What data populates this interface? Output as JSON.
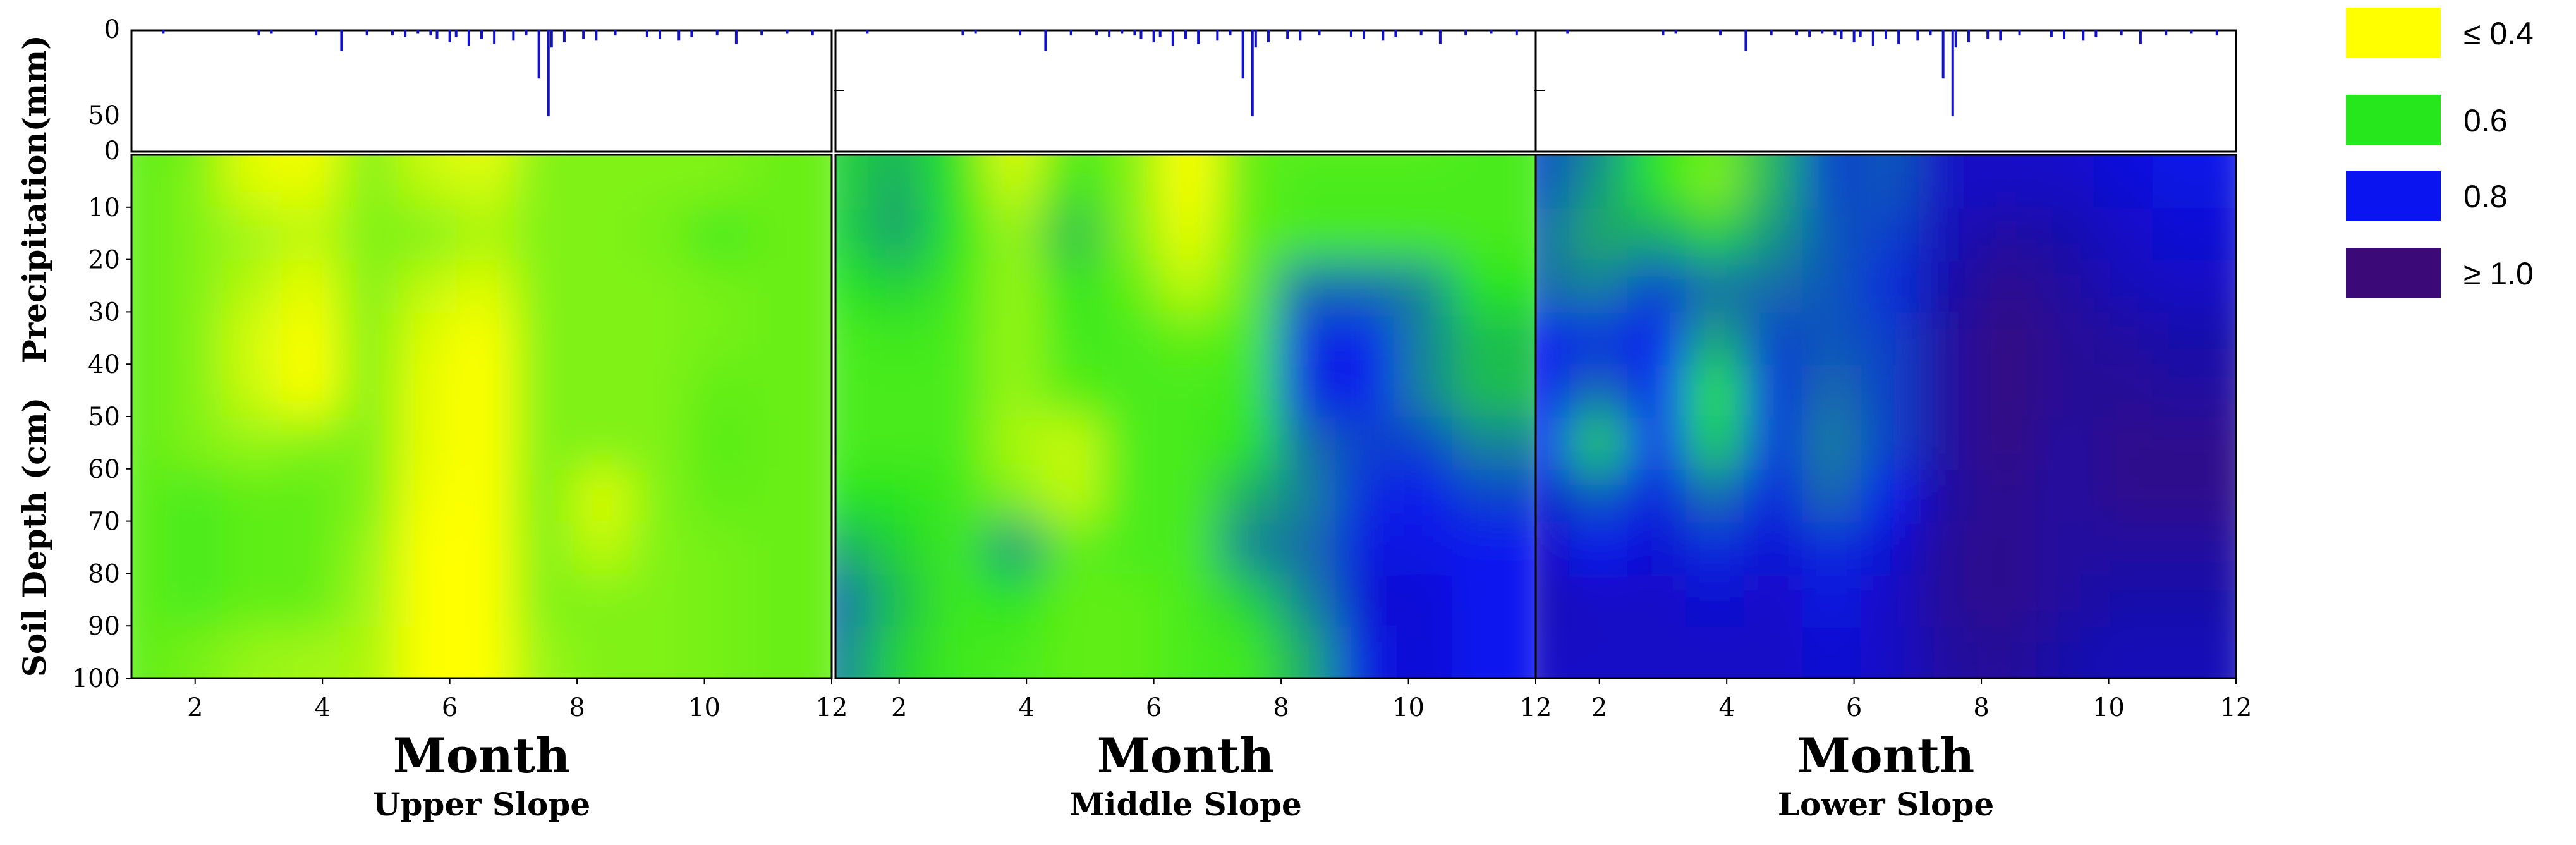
{
  "chart_data": {
    "type": "heatmap",
    "x_ticks": [
      2,
      4,
      6,
      8,
      10,
      12
    ],
    "xlim": [
      1,
      12
    ],
    "depth_ticks": [
      0,
      10,
      20,
      30,
      40,
      50,
      60,
      70,
      80,
      90,
      100
    ],
    "depth_ylim": [
      0,
      100
    ],
    "precip_ticks": [
      0,
      50
    ],
    "precip_ylim": [
      0,
      50
    ],
    "ylabel_soil": "Soil Depth (cm)",
    "ylabel_precip": "Precipitation(mm)",
    "xlabel": "Month",
    "legend": [
      {
        "label": "≤ 0.4",
        "color": "#ffff00"
      },
      {
        "label": "0.6",
        "color": "#26e61c"
      },
      {
        "label": "0.8",
        "color": "#0a14f0"
      },
      {
        "label": "≥ 1.0",
        "color": "#3c0a78"
      }
    ],
    "precipitation": [
      [
        1.5,
        2
      ],
      [
        3.0,
        3
      ],
      [
        3.2,
        2
      ],
      [
        3.9,
        3
      ],
      [
        4.3,
        12
      ],
      [
        4.7,
        3
      ],
      [
        5.1,
        3
      ],
      [
        5.3,
        4
      ],
      [
        5.5,
        2
      ],
      [
        5.7,
        3
      ],
      [
        5.8,
        5
      ],
      [
        6.0,
        7
      ],
      [
        6.1,
        4
      ],
      [
        6.3,
        9
      ],
      [
        6.5,
        5
      ],
      [
        6.7,
        8
      ],
      [
        7.0,
        6
      ],
      [
        7.2,
        3
      ],
      [
        7.4,
        28
      ],
      [
        7.55,
        50
      ],
      [
        7.6,
        10
      ],
      [
        7.8,
        7
      ],
      [
        8.1,
        5
      ],
      [
        8.3,
        6
      ],
      [
        8.6,
        3
      ],
      [
        9.1,
        4
      ],
      [
        9.3,
        5
      ],
      [
        9.6,
        6
      ],
      [
        9.8,
        4
      ],
      [
        10.2,
        3
      ],
      [
        10.5,
        8
      ],
      [
        10.9,
        3
      ],
      [
        11.3,
        2
      ],
      [
        11.7,
        3
      ]
    ],
    "panels": [
      {
        "title": "Upper Slope",
        "grid": [
          [
            0.55,
            0.54,
            0.42,
            0.38,
            0.52,
            0.44,
            0.41,
            0.52,
            0.52,
            0.52,
            0.52,
            0.54
          ],
          [
            0.55,
            0.52,
            0.43,
            0.42,
            0.52,
            0.46,
            0.44,
            0.52,
            0.52,
            0.52,
            0.52,
            0.54
          ],
          [
            0.55,
            0.52,
            0.49,
            0.46,
            0.52,
            0.52,
            0.48,
            0.52,
            0.52,
            0.53,
            0.58,
            0.54
          ],
          [
            0.55,
            0.52,
            0.47,
            0.42,
            0.52,
            0.46,
            0.43,
            0.52,
            0.52,
            0.52,
            0.53,
            0.54
          ],
          [
            0.55,
            0.52,
            0.44,
            0.39,
            0.52,
            0.43,
            0.39,
            0.52,
            0.52,
            0.52,
            0.53,
            0.54
          ],
          [
            0.55,
            0.52,
            0.45,
            0.4,
            0.52,
            0.42,
            0.38,
            0.52,
            0.52,
            0.52,
            0.55,
            0.54
          ],
          [
            0.55,
            0.52,
            0.5,
            0.52,
            0.52,
            0.42,
            0.38,
            0.52,
            0.52,
            0.52,
            0.56,
            0.54
          ],
          [
            0.55,
            0.57,
            0.55,
            0.55,
            0.52,
            0.41,
            0.38,
            0.53,
            0.43,
            0.52,
            0.55,
            0.54
          ],
          [
            0.55,
            0.57,
            0.55,
            0.55,
            0.5,
            0.4,
            0.37,
            0.52,
            0.46,
            0.52,
            0.53,
            0.54
          ],
          [
            0.55,
            0.57,
            0.55,
            0.55,
            0.49,
            0.39,
            0.37,
            0.52,
            0.52,
            0.52,
            0.53,
            0.54
          ],
          [
            0.55,
            0.53,
            0.5,
            0.49,
            0.48,
            0.38,
            0.37,
            0.5,
            0.52,
            0.52,
            0.53,
            0.54
          ]
        ]
      },
      {
        "title": "Middle Slope",
        "grid": [
          [
            0.62,
            0.64,
            0.6,
            0.42,
            0.56,
            0.52,
            0.4,
            0.55,
            0.55,
            0.55,
            0.55,
            0.57
          ],
          [
            0.62,
            0.66,
            0.6,
            0.45,
            0.6,
            0.52,
            0.4,
            0.55,
            0.57,
            0.57,
            0.57,
            0.57
          ],
          [
            0.62,
            0.67,
            0.6,
            0.5,
            0.64,
            0.52,
            0.42,
            0.55,
            0.57,
            0.57,
            0.57,
            0.57
          ],
          [
            0.6,
            0.62,
            0.58,
            0.5,
            0.6,
            0.55,
            0.46,
            0.55,
            0.72,
            0.72,
            0.7,
            0.6
          ],
          [
            0.57,
            0.58,
            0.57,
            0.5,
            0.58,
            0.57,
            0.55,
            0.57,
            0.78,
            0.8,
            0.7,
            0.64
          ],
          [
            0.57,
            0.57,
            0.57,
            0.5,
            0.56,
            0.57,
            0.57,
            0.58,
            0.78,
            0.8,
            0.7,
            0.64
          ],
          [
            0.57,
            0.57,
            0.57,
            0.48,
            0.45,
            0.57,
            0.57,
            0.6,
            0.72,
            0.76,
            0.76,
            0.7
          ],
          [
            0.6,
            0.6,
            0.58,
            0.52,
            0.46,
            0.57,
            0.57,
            0.66,
            0.7,
            0.78,
            0.8,
            0.76
          ],
          [
            0.66,
            0.62,
            0.58,
            0.68,
            0.55,
            0.57,
            0.57,
            0.7,
            0.72,
            0.82,
            0.82,
            0.8
          ],
          [
            0.72,
            0.64,
            0.58,
            0.6,
            0.55,
            0.55,
            0.57,
            0.62,
            0.7,
            0.84,
            0.84,
            0.8
          ],
          [
            0.7,
            0.62,
            0.58,
            0.57,
            0.55,
            0.55,
            0.57,
            0.58,
            0.66,
            0.82,
            0.84,
            0.8
          ]
        ]
      },
      {
        "title": "Lower Slope",
        "grid": [
          [
            0.75,
            0.7,
            0.6,
            0.55,
            0.65,
            0.76,
            0.74,
            0.86,
            0.86,
            0.85,
            0.82,
            0.8
          ],
          [
            0.75,
            0.68,
            0.6,
            0.52,
            0.65,
            0.76,
            0.74,
            0.86,
            0.86,
            0.86,
            0.84,
            0.82
          ],
          [
            0.72,
            0.66,
            0.66,
            0.62,
            0.68,
            0.74,
            0.76,
            0.88,
            0.92,
            0.9,
            0.86,
            0.84
          ],
          [
            0.72,
            0.7,
            0.76,
            0.72,
            0.72,
            0.74,
            0.78,
            0.9,
            0.96,
            0.92,
            0.88,
            0.86
          ],
          [
            0.8,
            0.78,
            0.8,
            0.66,
            0.76,
            0.74,
            0.76,
            0.92,
            0.98,
            0.94,
            0.92,
            0.9
          ],
          [
            0.8,
            0.72,
            0.8,
            0.6,
            0.78,
            0.72,
            0.76,
            0.92,
            0.98,
            0.94,
            0.94,
            0.92
          ],
          [
            0.8,
            0.62,
            0.8,
            0.62,
            0.78,
            0.7,
            0.76,
            0.92,
            0.98,
            0.92,
            0.96,
            0.96
          ],
          [
            0.84,
            0.74,
            0.82,
            0.72,
            0.82,
            0.72,
            0.8,
            0.92,
            0.96,
            0.92,
            0.96,
            0.96
          ],
          [
            0.86,
            0.8,
            0.84,
            0.78,
            0.84,
            0.78,
            0.84,
            0.94,
            0.96,
            0.92,
            0.92,
            0.92
          ],
          [
            0.88,
            0.86,
            0.86,
            0.84,
            0.86,
            0.82,
            0.86,
            0.94,
            0.96,
            0.92,
            0.9,
            0.9
          ],
          [
            0.86,
            0.86,
            0.86,
            0.86,
            0.86,
            0.84,
            0.86,
            0.92,
            0.94,
            0.9,
            0.88,
            0.88
          ]
        ]
      }
    ]
  }
}
